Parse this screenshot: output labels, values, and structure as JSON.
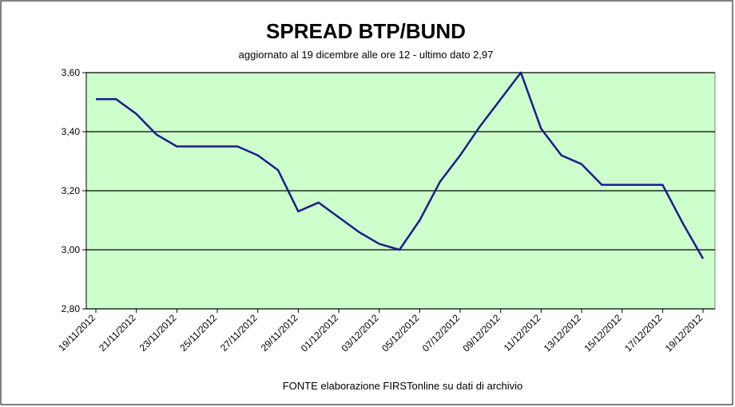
{
  "chart_data": {
    "type": "line",
    "title": "SPREAD  BTP/BUND",
    "subtitle": "aggiornato al 19 dicembre alle ore 12 - ultimo dato 2,97",
    "source": "FONTE elaborazione FIRSTonline su dati di archivio",
    "categories": [
      "19/11/2012",
      null,
      "21/11/2012",
      null,
      "23/11/2012",
      null,
      "25/11/2012",
      null,
      "27/11/2012",
      null,
      "29/11/2012",
      null,
      "01/12/2012",
      null,
      "03/12/2012",
      null,
      "05/12/2012",
      null,
      "07/12/2012",
      null,
      "09/12/2012",
      null,
      "11/12/2012",
      null,
      "13/12/2012",
      null,
      "15/12/2012",
      null,
      "17/12/2012",
      null,
      "19/12/2012"
    ],
    "series": [
      {
        "name": "spread",
        "color": "#1c1c8a",
        "values": [
          3.51,
          3.51,
          3.46,
          3.39,
          3.35,
          3.35,
          3.35,
          3.35,
          3.32,
          3.27,
          3.13,
          3.16,
          3.11,
          3.06,
          3.02,
          3.0,
          3.1,
          3.23,
          3.32,
          3.42,
          3.51,
          3.6,
          3.41,
          3.32,
          3.29,
          3.22,
          3.22,
          3.22,
          3.22,
          3.09,
          2.97
        ]
      }
    ],
    "ylim": [
      2.8,
      3.6
    ],
    "yticks": [
      {
        "value": 2.8,
        "label": "2,80"
      },
      {
        "value": 3.0,
        "label": "3,00"
      },
      {
        "value": 3.2,
        "label": "3,20"
      },
      {
        "value": 3.4,
        "label": "3,40"
      },
      {
        "value": 3.6,
        "label": "3,60"
      }
    ],
    "grid": true,
    "plot_color": "#ccffcc"
  }
}
